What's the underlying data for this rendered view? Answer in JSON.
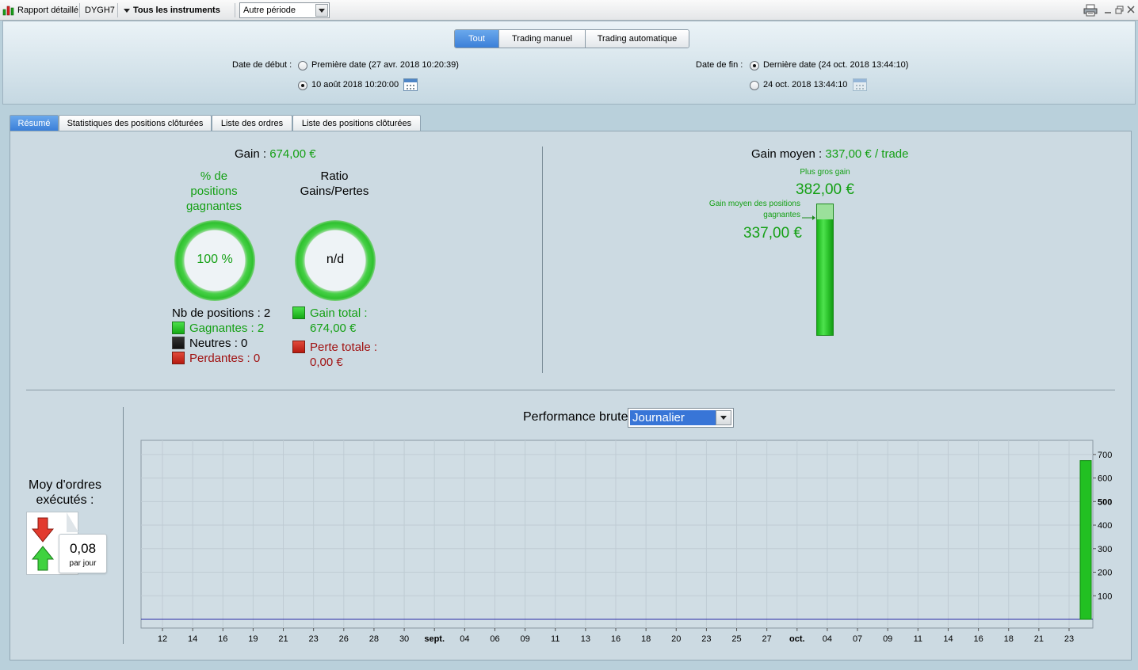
{
  "toolbar": {
    "report_label": "Rapport détaillé",
    "instrument_code": "DYGH7",
    "instruments_label": "Tous les instruments",
    "period_value": "Autre période"
  },
  "filter": {
    "segments": [
      "Tout",
      "Trading manuel",
      "Trading automatique"
    ],
    "active_segment": "Tout",
    "start_label": "Date de début :",
    "start_first_option": "Première date (27 avr. 2018 10:20:39)",
    "start_custom_option": "10 août 2018 10:20:00",
    "end_label": "Date de fin :",
    "end_last_option": "Dernière date (24 oct. 2018 13:44:10)",
    "end_custom_option": "24 oct. 2018 13:44:10"
  },
  "tabs": [
    "Résumé",
    "Statistiques des positions clôturées",
    "Liste des ordres",
    "Liste des positions clôturées"
  ],
  "summary": {
    "gain_label": "Gain :",
    "gain_value": "674,00 €",
    "win_pct_title_1": "% de",
    "win_pct_title_2": "positions",
    "win_pct_title_3": "gagnantes",
    "win_pct_value": "100 %",
    "win_pct_fraction": 1.0,
    "ratio_title_1": "Ratio",
    "ratio_title_2": "Gains/Pertes",
    "ratio_value": "n/d",
    "nb_positions": "Nb de positions : 2",
    "winners": "Gagnantes : 2",
    "neutral": "Neutres : 0",
    "losers": "Perdantes : 0",
    "total_gain_label": "Gain total :",
    "total_gain_value": "674,00 €",
    "total_loss_label": "Perte totale :",
    "total_loss_value": "0,00 €"
  },
  "average": {
    "label": "Gain moyen :",
    "value": "337,00 € / trade",
    "max_gain_label": "Plus gros gain",
    "max_gain_value": "382,00 €",
    "avg_win_label_1": "Gain moyen des positions",
    "avg_win_label_2": "gagnantes",
    "avg_win_value": "337,00 €",
    "max_gain_number": 382,
    "avg_win_number": 337
  },
  "orders": {
    "label_1": "Moy d'ordres",
    "label_2": "exécutés :",
    "value": "0,08",
    "unit": "par jour"
  },
  "colors": {
    "accent": "#3b7fd8",
    "gain_green": "#14a014",
    "loss_red": "#a01010",
    "bar_green": "#22c022",
    "line_blue": "#2a2aa8"
  },
  "chart_data": {
    "type": "bar",
    "title": "Performance brute",
    "period_selector": "Journalier",
    "x_ticks": [
      "12",
      "14",
      "16",
      "19",
      "21",
      "23",
      "26",
      "28",
      "30",
      "sept.",
      "04",
      "06",
      "09",
      "11",
      "13",
      "16",
      "18",
      "20",
      "23",
      "25",
      "27",
      "oct.",
      "04",
      "07",
      "09",
      "11",
      "14",
      "16",
      "18",
      "21",
      "23"
    ],
    "bold_x_ticks": [
      "sept.",
      "oct."
    ],
    "y_ticks": [
      100,
      200,
      300,
      400,
      500,
      600,
      700
    ],
    "bold_y_ticks": [
      500
    ],
    "ylim": [
      0,
      760
    ],
    "y_axis_side": "right",
    "grid": true,
    "series": [
      {
        "x": [
          "24 oct."
        ],
        "values": [
          674
        ]
      }
    ]
  }
}
